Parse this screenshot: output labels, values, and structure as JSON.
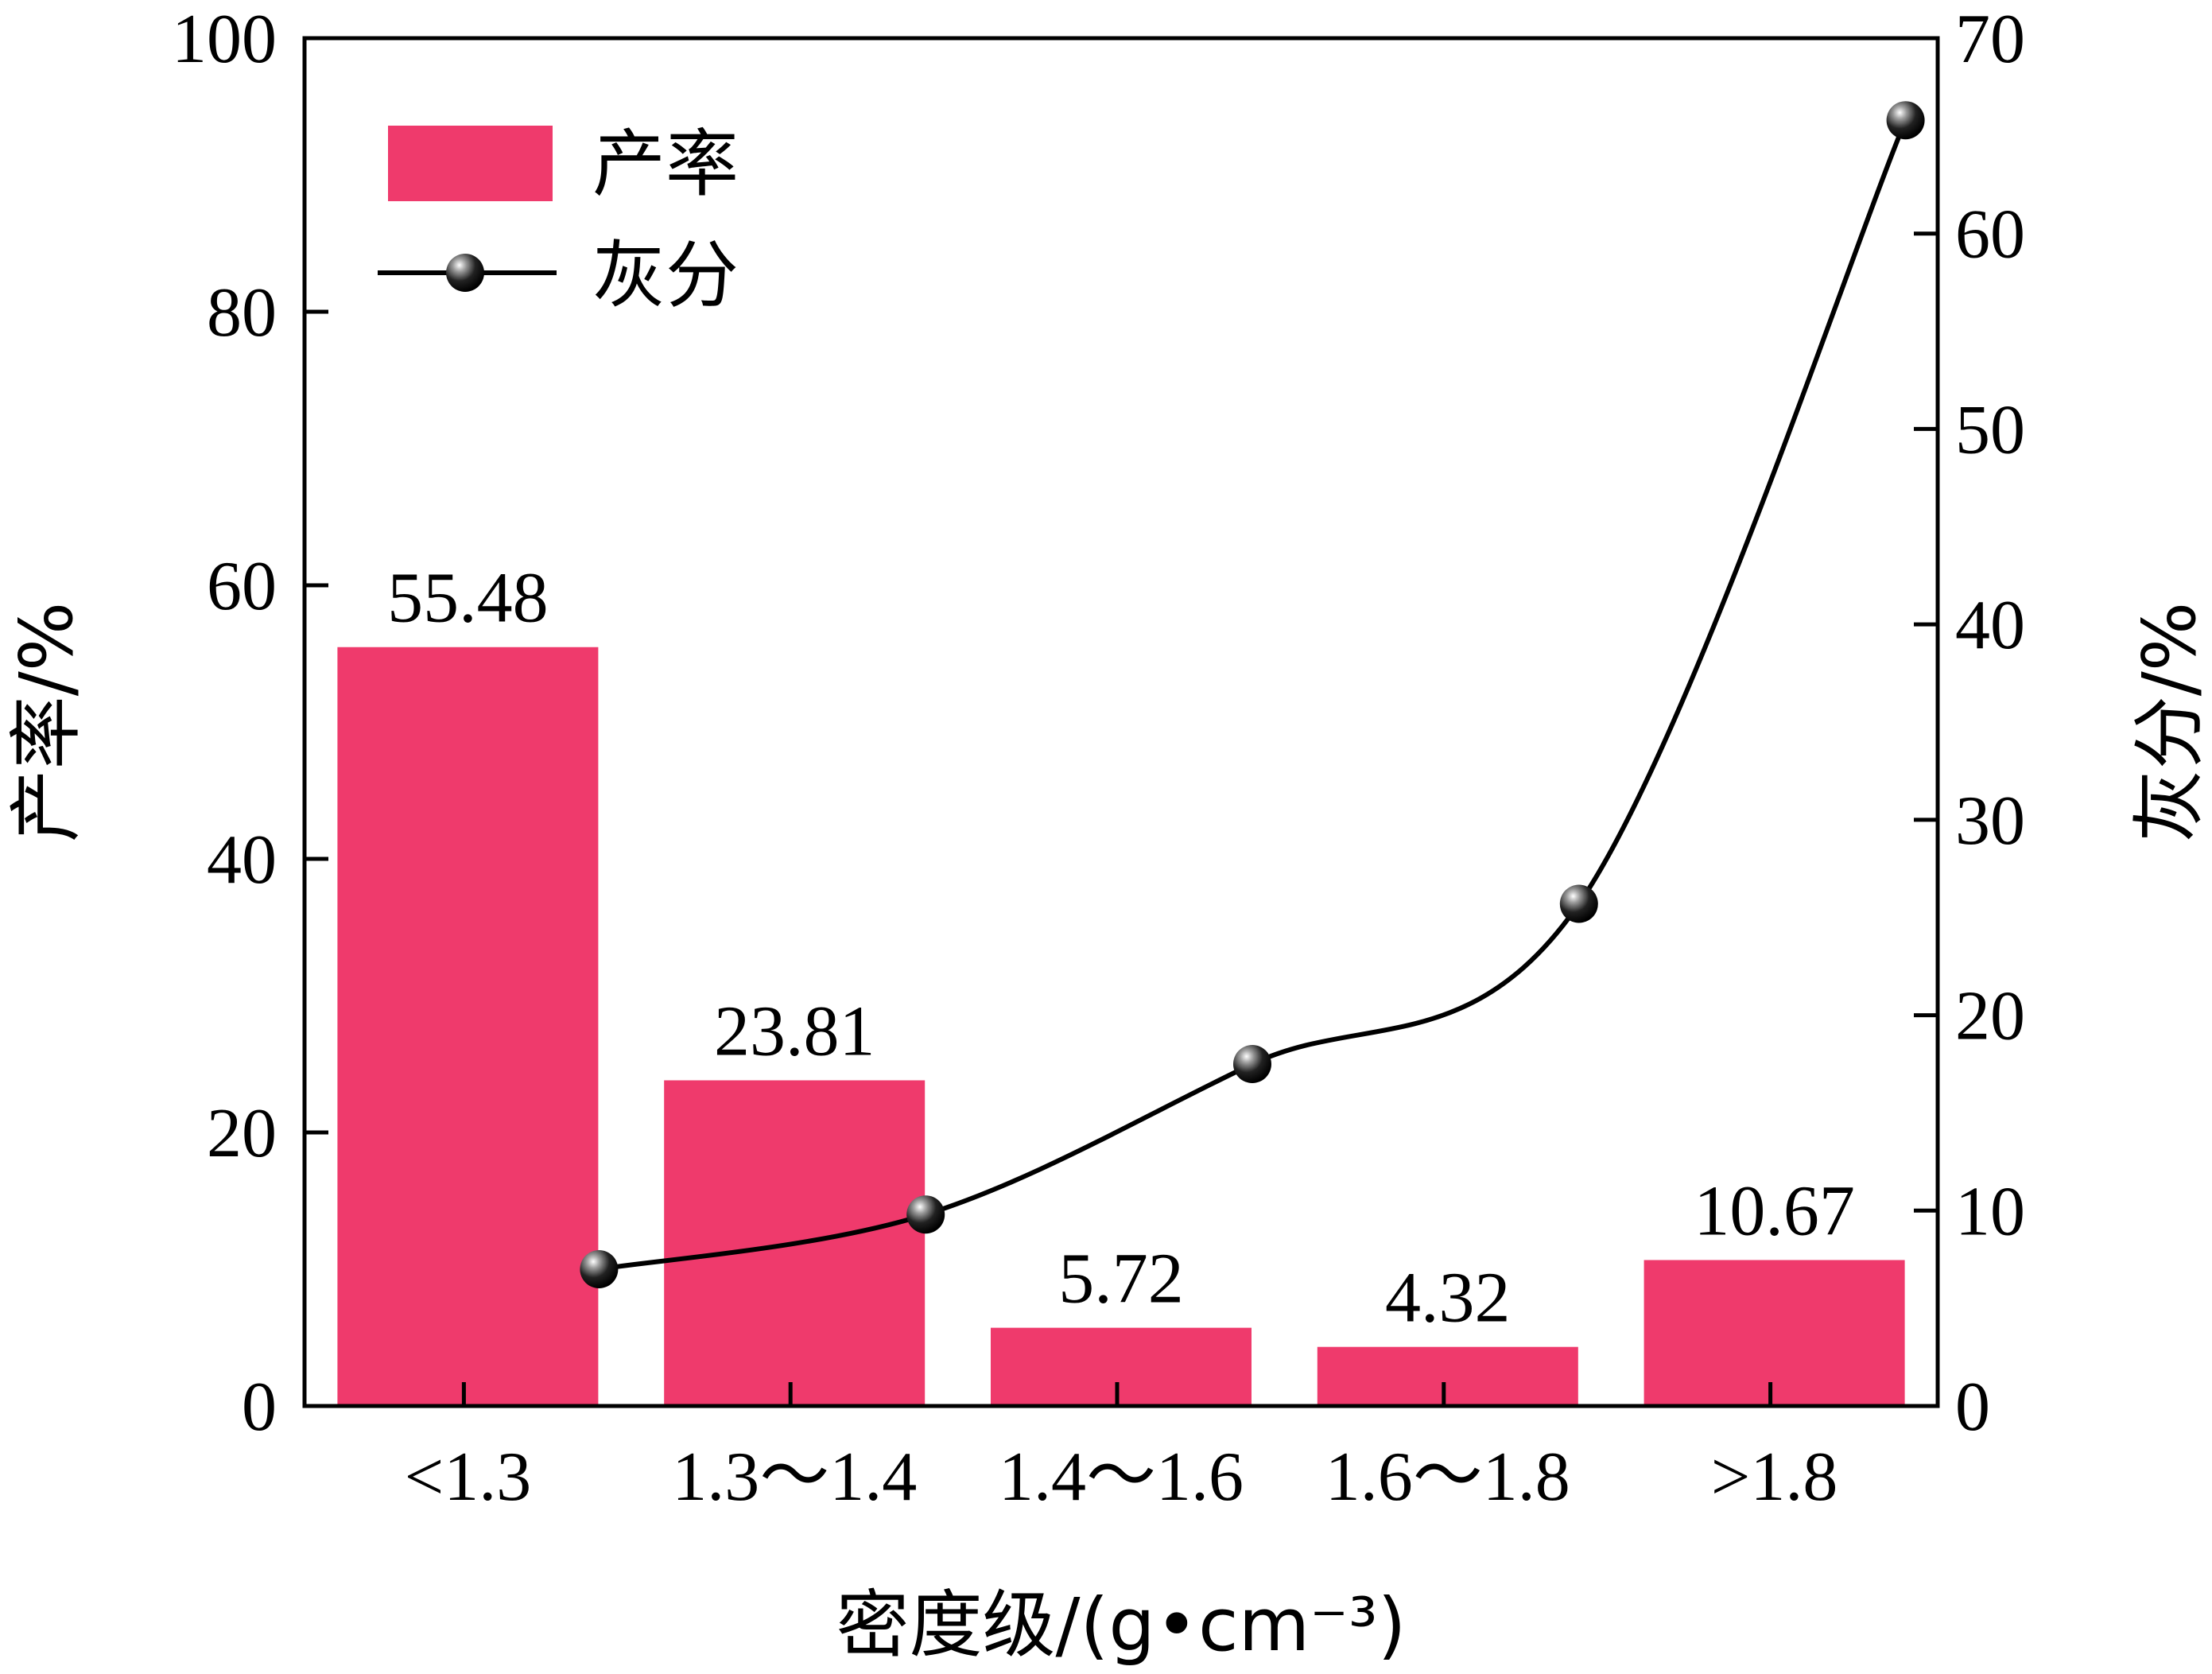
{
  "chart_data": {
    "type": "bar",
    "categories": [
      "<1.3",
      "1.3～1.4",
      "1.4～1.6",
      "1.6～1.8",
      ">1.8"
    ],
    "series": [
      {
        "name": "产率",
        "type": "bar",
        "axis": "left",
        "color": "#ef3a6c",
        "values": [
          55.48,
          23.81,
          5.72,
          4.32,
          10.67
        ],
        "value_labels": [
          "55.48",
          "23.81",
          "5.72",
          "4.32",
          "10.67"
        ]
      },
      {
        "name": "灰分",
        "type": "line",
        "axis": "right",
        "color": "#000000",
        "values": [
          7.0,
          9.8,
          17.5,
          25.7,
          65.8
        ]
      }
    ],
    "title": "",
    "xlabel": "密度级/(g•cm⁻³)",
    "ylabel_left": "产率/%",
    "ylabel_right": "灰分/%",
    "ylim_left": [
      0,
      100
    ],
    "ylim_right": [
      0,
      70
    ],
    "yticks_left": [
      0,
      20,
      40,
      60,
      80,
      100
    ],
    "yticks_right": [
      0,
      10,
      20,
      30,
      40,
      50,
      60,
      70
    ],
    "legend": {
      "placement": "top-left",
      "entries": [
        "产率",
        "灰分"
      ]
    },
    "grid": false
  }
}
